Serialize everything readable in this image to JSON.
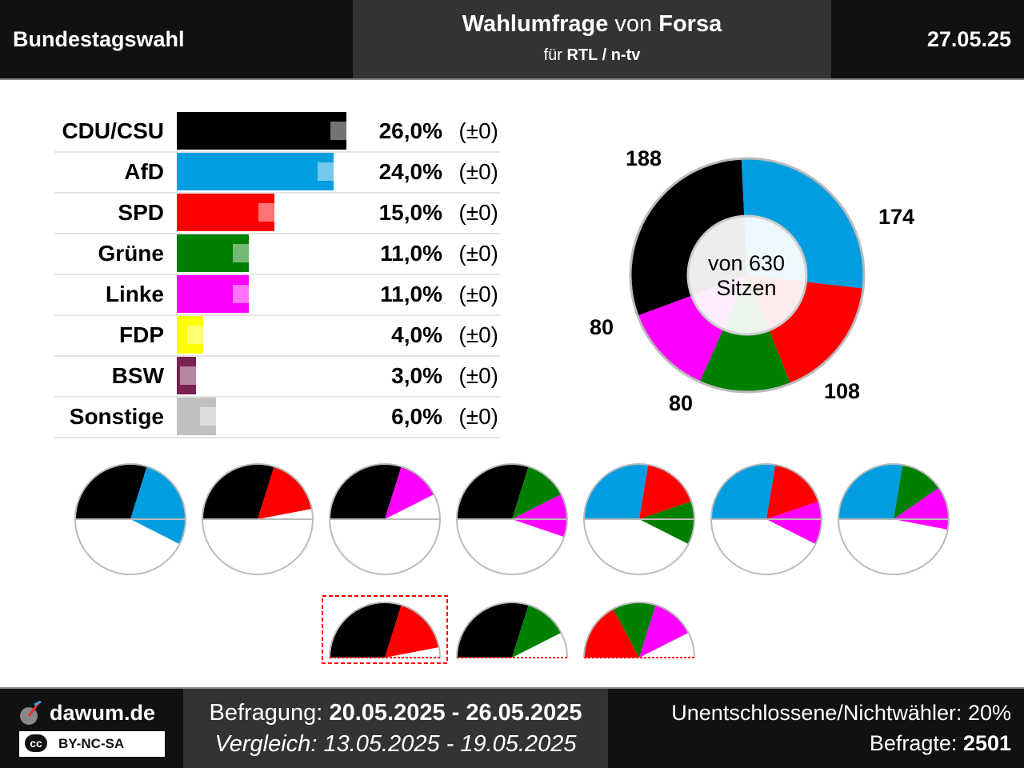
{
  "header": {
    "left": "Bundestagswahl",
    "title_bold1": "Wahlumfrage",
    "title_mid": " von ",
    "title_bold2": "Forsa",
    "sub_prefix": "für ",
    "sub_bold": "RTL / n-tv",
    "date": "27.05.25"
  },
  "chart_data": [
    {
      "type": "bar",
      "categories": [
        "CDU/CSU",
        "AfD",
        "SPD",
        "Grüne",
        "Linke",
        "FDP",
        "BSW",
        "Sonstige"
      ],
      "values": [
        26.0,
        24.0,
        15.0,
        11.0,
        11.0,
        4.0,
        3.0,
        6.0
      ],
      "previous_values": [
        26.0,
        24.0,
        15.0,
        11.0,
        11.0,
        4.0,
        3.0,
        6.0
      ],
      "value_labels": [
        "26,0%",
        "24,0%",
        "15,0%",
        "11,0%",
        "11,0%",
        "4,0%",
        "3,0%",
        "6,0%"
      ],
      "change_labels": [
        "(±0)",
        "(±0)",
        "(±0)",
        "(±0)",
        "(±0)",
        "(±0)",
        "(±0)",
        "(±0)"
      ],
      "colors": [
        "#000000",
        "#009ee0",
        "#ff0000",
        "#008000",
        "#ff00ff",
        "#ffff00",
        "#7a2150",
        "#c0c0c0"
      ]
    },
    {
      "type": "pie",
      "categories": [
        "CDU/CSU",
        "AfD",
        "SPD",
        "Grüne",
        "Linke"
      ],
      "values": [
        188,
        174,
        108,
        80,
        80
      ],
      "colors": [
        "#000000",
        "#009ee0",
        "#ff0000",
        "#008000",
        "#ff00ff"
      ],
      "center_line1": "von 630",
      "center_line2": "Sitzen"
    },
    {
      "type": "pie",
      "description": "coalition half-circles",
      "coalitions": [
        {
          "parties": [
            "CDU/CSU",
            "AfD"
          ],
          "seats": [
            188,
            174
          ]
        },
        {
          "parties": [
            "CDU/CSU",
            "SPD"
          ],
          "seats": [
            188,
            108
          ]
        },
        {
          "parties": [
            "CDU/CSU",
            "Linke"
          ],
          "seats": [
            188,
            80
          ]
        },
        {
          "parties": [
            "CDU/CSU",
            "Grüne",
            "Linke"
          ],
          "seats": [
            188,
            80,
            80
          ]
        },
        {
          "parties": [
            "AfD",
            "SPD",
            "Grüne"
          ],
          "seats": [
            174,
            108,
            80
          ]
        },
        {
          "parties": [
            "AfD",
            "SPD",
            "Linke"
          ],
          "seats": [
            174,
            108,
            80
          ]
        },
        {
          "parties": [
            "AfD",
            "Grüne",
            "Linke"
          ],
          "seats": [
            174,
            80,
            80
          ]
        },
        {
          "parties": [
            "CDU/CSU",
            "SPD"
          ],
          "seats": [
            188,
            108
          ],
          "highlighted": true
        },
        {
          "parties": [
            "CDU/CSU",
            "Grüne"
          ],
          "seats": [
            188,
            80
          ]
        },
        {
          "parties": [
            "SPD",
            "Grüne",
            "Linke"
          ],
          "seats": [
            108,
            80,
            80
          ]
        }
      ],
      "total_seats": 630
    }
  ],
  "footer": {
    "brand": "dawum.de",
    "license": "BY-NC-SA",
    "survey_prefix": "Befragung: ",
    "survey_dates": "20.05.2025 - 26.05.2025",
    "compare": "Vergleich: 13.05.2025 - 19.05.2025",
    "undecided": "Unentschlossene/Nichtwähler: 20%",
    "respondents_prefix": "Befragte: ",
    "respondents": "2501"
  }
}
